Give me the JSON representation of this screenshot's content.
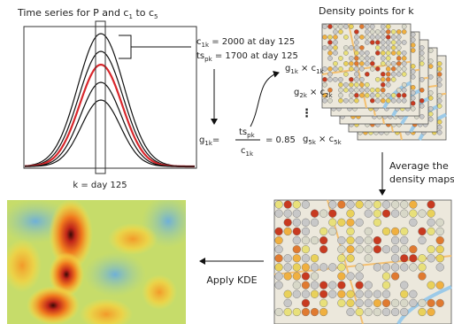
{
  "time_series": {
    "title": [
      "Time series for P and c",
      "1",
      " to c",
      "5"
    ],
    "k_label": "k = day 125"
  },
  "values": {
    "c_line": [
      "c",
      "1k",
      " = 2000 at day 125"
    ],
    "ts_line": [
      "ts",
      "pk",
      " = 1700 at day 125"
    ]
  },
  "formula": {
    "lhs": [
      "g",
      "1k",
      "="
    ],
    "numerator": [
      "ts",
      "pk"
    ],
    "denominator": [
      "c",
      "1k"
    ],
    "result": "= 0.85"
  },
  "density": {
    "title": "Density points for k",
    "labels": [
      [
        "g",
        "1k",
        " × c",
        "1k"
      ],
      [
        "g",
        "2k",
        " × c",
        "2k"
      ],
      [
        "g",
        "5k",
        " × c",
        "5k"
      ]
    ],
    "ellipsis": "⋮"
  },
  "average": [
    "Average the",
    "density maps"
  ],
  "kde": "Apply KDE"
}
